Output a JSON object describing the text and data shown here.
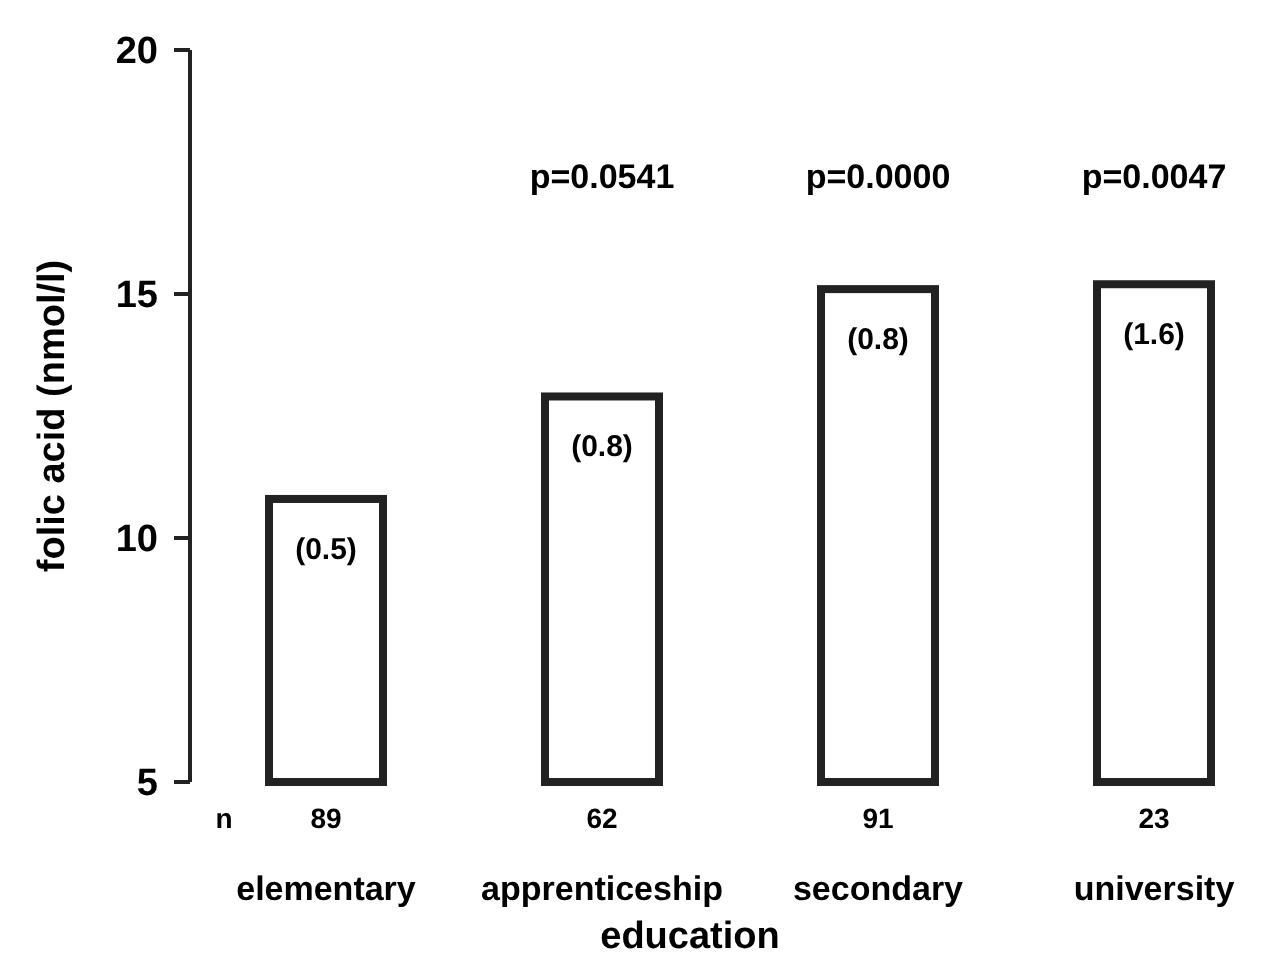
{
  "chart_data": {
    "type": "bar",
    "xlabel": "education",
    "ylabel": "folic acid (nmol/l)",
    "categories": [
      "elementary",
      "apprenticeship",
      "secondary",
      "university"
    ],
    "values": [
      10.8,
      12.9,
      15.1,
      15.2
    ],
    "color": "#ffffff",
    "ylim": [
      5,
      20
    ],
    "yticks": [
      5,
      10,
      15,
      20
    ],
    "grid": false,
    "annotations": [
      "p=0.0541",
      "p=0.0000",
      "p=0.0047",
      "n",
      "89",
      "62",
      "91",
      "23",
      "(0.5)",
      "(0.8)",
      "(0.8)",
      "(1.6)"
    ]
  }
}
